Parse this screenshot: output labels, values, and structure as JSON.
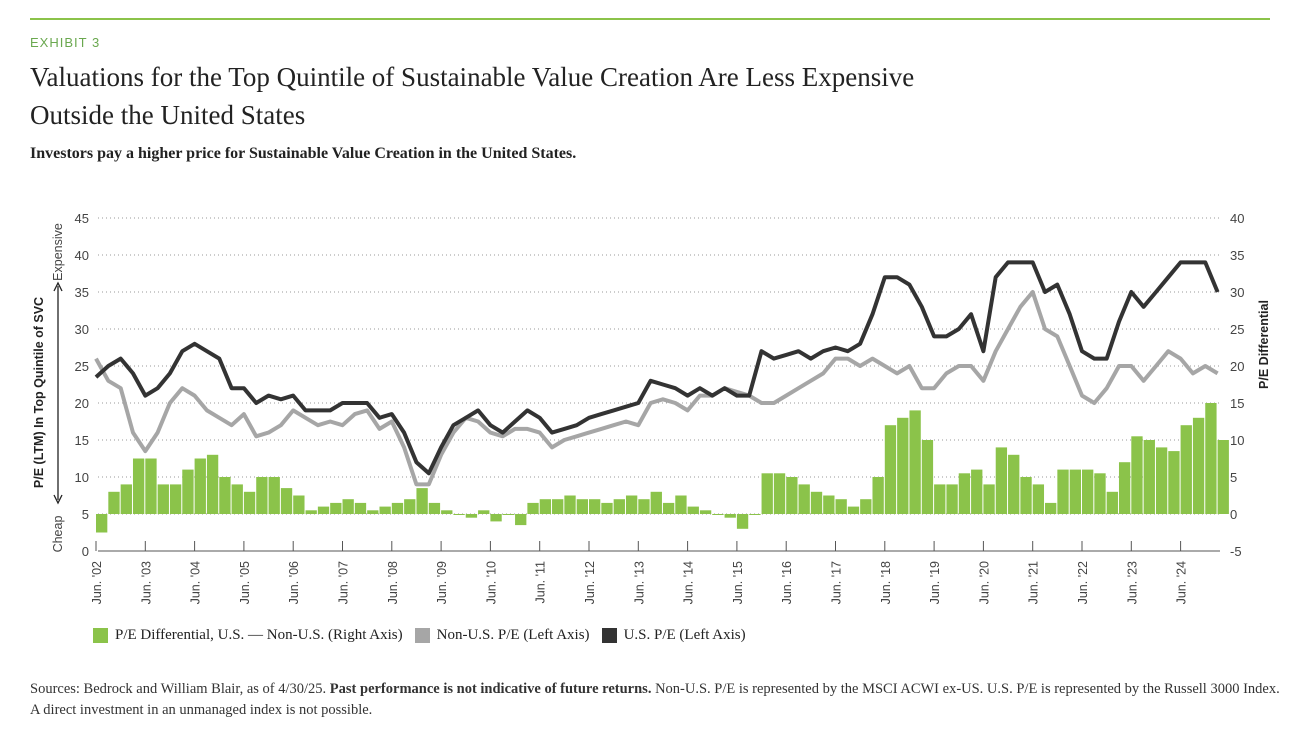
{
  "header": {
    "exhibit": "EXHIBIT 3",
    "title_line1": "Valuations for the Top Quintile of Sustainable Value Creation Are Less Expensive",
    "title_line2": "Outside the United States",
    "subtitle": "Investors pay a higher price for Sustainable Value Creation in the United States."
  },
  "colors": {
    "diff": "#8bc34a",
    "nonus": "#a6a6a6",
    "us": "#333333",
    "accent": "#6aa84f"
  },
  "chart_data": {
    "type": "bar+line",
    "left_axis": {
      "label": "P/E (LTM) In Top Quintile of SVC",
      "ticks": [
        0,
        5,
        10,
        15,
        20,
        25,
        30,
        35,
        40,
        45
      ],
      "range": [
        0,
        45
      ],
      "top_note": "Expensive",
      "bottom_note": "Cheap"
    },
    "right_axis": {
      "label": "P/E Differential",
      "ticks": [
        -5,
        0,
        5,
        10,
        15,
        20,
        25,
        30,
        35,
        40
      ],
      "range": [
        -5,
        40
      ]
    },
    "x_ticks": [
      "Jun. '02",
      "Jun. '03",
      "Jun. '04",
      "Jun. '05",
      "Jun. '06",
      "Jun. '07",
      "Jun. '08",
      "Jun. '09",
      "Jun. '10",
      "Jun. '11",
      "Jun. '12",
      "Jun. '13",
      "Jun. '14",
      "Jun. '15",
      "Jun. '16",
      "Jun. '17",
      "Jun. '18",
      "Jun. '19",
      "Jun. '20",
      "Jun. '21",
      "Jun. '22",
      "Jun. '23",
      "Jun. '24"
    ],
    "x": [
      2002.5,
      2002.75,
      2003.0,
      2003.25,
      2003.5,
      2003.75,
      2004.0,
      2004.25,
      2004.5,
      2004.75,
      2005.0,
      2005.25,
      2005.5,
      2005.75,
      2006.0,
      2006.25,
      2006.5,
      2006.75,
      2007.0,
      2007.25,
      2007.5,
      2007.75,
      2008.0,
      2008.25,
      2008.5,
      2008.75,
      2009.0,
      2009.25,
      2009.5,
      2009.75,
      2010.0,
      2010.25,
      2010.5,
      2010.75,
      2011.0,
      2011.25,
      2011.5,
      2011.75,
      2012.0,
      2012.25,
      2012.5,
      2012.75,
      2013.0,
      2013.25,
      2013.5,
      2013.75,
      2014.0,
      2014.25,
      2014.5,
      2014.75,
      2015.0,
      2015.25,
      2015.5,
      2015.75,
      2016.0,
      2016.25,
      2016.5,
      2016.75,
      2017.0,
      2017.25,
      2017.5,
      2017.75,
      2018.0,
      2018.25,
      2018.5,
      2018.75,
      2019.0,
      2019.25,
      2019.5,
      2019.75,
      2020.0,
      2020.25,
      2020.5,
      2020.75,
      2021.0,
      2021.25,
      2021.5,
      2021.75,
      2022.0,
      2022.25,
      2022.5,
      2022.75,
      2023.0,
      2023.25,
      2023.5,
      2023.75,
      2024.0,
      2024.25,
      2024.5,
      2024.75,
      2025.0,
      2025.25
    ],
    "series": [
      {
        "name": "P/E Differential, U.S. — Non-U.S. (Right Axis)",
        "axis": "right",
        "kind": "bar",
        "values": [
          -2.5,
          3,
          4,
          7.5,
          7.5,
          4,
          4,
          6,
          7.5,
          8,
          5,
          4,
          3,
          5,
          5,
          3.5,
          2.5,
          0.5,
          1,
          1.5,
          2,
          1.5,
          0.5,
          1,
          1.5,
          2,
          3.5,
          1.5,
          0.5,
          0,
          -0.5,
          0.5,
          -1,
          0,
          -1.5,
          1.5,
          2,
          2,
          2.5,
          2,
          2,
          1.5,
          2,
          2.5,
          2,
          3,
          1.5,
          2.5,
          1,
          0.5,
          0,
          -0.5,
          -2,
          0,
          5.5,
          5.5,
          5,
          4,
          3,
          2.5,
          2,
          1,
          2,
          5,
          12,
          13,
          14,
          10,
          4,
          4,
          5.5,
          6,
          4,
          9,
          8,
          5,
          4,
          1.5,
          6,
          6,
          6,
          5.5,
          3,
          7,
          10.5,
          10,
          9,
          8.5,
          12,
          13,
          15,
          10
        ]
      },
      {
        "name": "Non-U.S. P/E (Left Axis)",
        "axis": "left",
        "kind": "line",
        "values": [
          26,
          23,
          22,
          16,
          13.5,
          16,
          20,
          22,
          21,
          19,
          18,
          17,
          18.5,
          15.5,
          16,
          17,
          19,
          18,
          17,
          17.5,
          17,
          18.5,
          19,
          16.5,
          17.5,
          14,
          9,
          9,
          13,
          16,
          18,
          17.5,
          16,
          15.5,
          16.5,
          16.5,
          16,
          14,
          15,
          15.5,
          16,
          16.5,
          17,
          17.5,
          17,
          20,
          20.5,
          20,
          19,
          21,
          21,
          22,
          21.5,
          21,
          20,
          20,
          21,
          22,
          23,
          24,
          26,
          26,
          25,
          26,
          25,
          24,
          25,
          22,
          22,
          24,
          25,
          25,
          23,
          27,
          30,
          33,
          35,
          30,
          29,
          25,
          21,
          20,
          22,
          25,
          25,
          23,
          25,
          27,
          26,
          24,
          25,
          24
        ]
      },
      {
        "name": "U.S. P/E (Left Axis)",
        "axis": "left",
        "kind": "line",
        "values": [
          23.5,
          25,
          26,
          24,
          21,
          22,
          24,
          27,
          28,
          27,
          26,
          22,
          22,
          20,
          21,
          20.5,
          21,
          19,
          19,
          19,
          20,
          20,
          20,
          18,
          18.5,
          16,
          12,
          10.5,
          14,
          17,
          18,
          19,
          17,
          16,
          17.5,
          19,
          18,
          16,
          16.5,
          17,
          18,
          18.5,
          19,
          19.5,
          20,
          23,
          22.5,
          22,
          21,
          22,
          21,
          22,
          21,
          21,
          27,
          26,
          26.5,
          27,
          26,
          27,
          27.5,
          27,
          28,
          32,
          37,
          37,
          36,
          33,
          29,
          29,
          30,
          32,
          27,
          37,
          39,
          39,
          39,
          35,
          36,
          32,
          27,
          26,
          26,
          31,
          35,
          33,
          35,
          37,
          39,
          39,
          39,
          35
        ]
      }
    ]
  },
  "legend": [
    {
      "label": "P/E Differential, U.S. — Non-U.S. (Right Axis)"
    },
    {
      "label": "Non-U.S. P/E (Left Axis)"
    },
    {
      "label": "U.S. P/E (Left Axis)"
    }
  ],
  "footer": {
    "sources": "Sources: Bedrock and William Blair, as of 4/30/25. ",
    "bold": "Past performance is not indicative of future returns.",
    "rest": " Non-U.S. P/E is represented by the MSCI ACWI ex-US. U.S. P/E is represented by the Russell 3000 Index. A direct investment in an unmanaged index is not possible."
  }
}
